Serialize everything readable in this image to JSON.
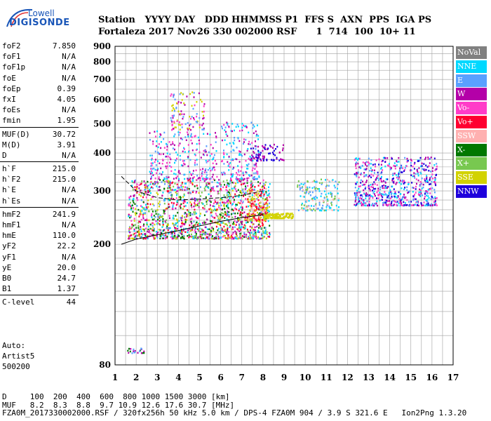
{
  "logo": {
    "line1": "Lowell",
    "line2": "DIGISONDE"
  },
  "header": {
    "line1": "Station   YYYY DAY   DDD HHMMSS P1  FFS S  AXN  PPS  IGA PS",
    "line2": "Fortaleza 2017 Nov26 330 002000 RSF      1  714  100  10+ 11"
  },
  "params": {
    "group1": [
      {
        "k": "foF2",
        "v": "7.850"
      },
      {
        "k": "foF1",
        "v": "N/A"
      },
      {
        "k": "foF1p",
        "v": "N/A"
      },
      {
        "k": "foE",
        "v": "N/A"
      },
      {
        "k": "foEp",
        "v": "0.39"
      },
      {
        "k": "fxI",
        "v": "4.05"
      },
      {
        "k": "foEs",
        "v": "N/A"
      },
      {
        "k": "fmin",
        "v": "1.95"
      }
    ],
    "group2": [
      {
        "k": "MUF(D)",
        "v": "30.72"
      },
      {
        "k": "M(D)",
        "v": "3.91"
      },
      {
        "k": "D",
        "v": "N/A"
      }
    ],
    "group3": [
      {
        "k": "h`F",
        "v": "215.0"
      },
      {
        "k": "h`F2",
        "v": "215.0"
      },
      {
        "k": "h`E",
        "v": "N/A"
      },
      {
        "k": "h`Es",
        "v": "N/A"
      }
    ],
    "group4": [
      {
        "k": "hmF2",
        "v": "241.9"
      },
      {
        "k": "hmF1",
        "v": "N/A"
      },
      {
        "k": "hmE",
        "v": "110.0"
      },
      {
        "k": "yF2",
        "v": "22.2"
      },
      {
        "k": "yF1",
        "v": "N/A"
      },
      {
        "k": "yE",
        "v": "20.0"
      },
      {
        "k": "B0",
        "v": "24.7"
      },
      {
        "k": "B1",
        "v": "1.37"
      }
    ],
    "group5": [
      {
        "k": "C-level",
        "v": "44"
      }
    ]
  },
  "auto": {
    "line1": "Auto:",
    "line2": "Artist5",
    "line3": "500200"
  },
  "footer": {
    "line1": "D     100  200  400  600  800 1000 1500 3000 [km]",
    "line2": "MUF   8.2  8.3  8.8  9.7 10.9 12.6 17.6 30.7 [MHz]",
    "line3": "FZA0M_2017330002000.RSF / 320fx256h 50 kHz 5.0 km / DPS-4 FZA0M 904 / 3.9 S 321.6 E   Ion2Png 1.3.20"
  },
  "legend": [
    {
      "label": "NoVal",
      "color": "#808080"
    },
    {
      "label": "NNE",
      "color": "#00d8ff"
    },
    {
      "label": "E",
      "color": "#5aa0ff"
    },
    {
      "label": "W",
      "color": "#b400a8"
    },
    {
      "label": "Vo-",
      "color": "#ff3cc8"
    },
    {
      "label": "Vo+",
      "color": "#ff0030"
    },
    {
      "label": "SSW",
      "color": "#ffb0b0"
    },
    {
      "label": "X-",
      "color": "#007800"
    },
    {
      "label": "X+",
      "color": "#78c850"
    },
    {
      "label": "SSE",
      "color": "#d2d200"
    },
    {
      "label": "NNW",
      "color": "#1e00dc"
    }
  ],
  "chart_data": {
    "type": "scatter",
    "title": "",
    "xlabel": "",
    "ylabel": "",
    "xlim": [
      1,
      17
    ],
    "ylim": [
      80,
      900
    ],
    "xticks": [
      "1",
      "2",
      "3",
      "4",
      "5",
      "6",
      "7",
      "8",
      "9",
      "10",
      "11",
      "12",
      "13",
      "14",
      "15",
      "16",
      "17"
    ],
    "yticks": [
      "80",
      "200",
      "300",
      "400",
      "500",
      "600",
      "700",
      "800",
      "900"
    ],
    "ytick_values": [
      80,
      200,
      300,
      400,
      500,
      600,
      700,
      800,
      900
    ],
    "grid": true,
    "y_scale": "log",
    "clusters": [
      {
        "x": [
          1.6,
          8.3
        ],
        "y": [
          210,
          330
        ],
        "colors": [
          "#ff0030",
          "#b400a8",
          "#ff3cc8",
          "#d2d200",
          "#78c850",
          "#5aa0ff",
          "#00d8ff",
          "#007800"
        ],
        "density": 1500
      },
      {
        "x": [
          2.6,
          5.8
        ],
        "y": [
          330,
          480
        ],
        "colors": [
          "#5aa0ff",
          "#00d8ff",
          "#b400a8",
          "#ff3cc8"
        ],
        "density": 260
      },
      {
        "x": [
          3.6,
          5.2
        ],
        "y": [
          480,
          640
        ],
        "colors": [
          "#d2d200",
          "#5aa0ff",
          "#ff3cc8",
          "#b400a8"
        ],
        "density": 110
      },
      {
        "x": [
          6.0,
          7.8
        ],
        "y": [
          330,
          510
        ],
        "colors": [
          "#5aa0ff",
          "#ff3cc8",
          "#b400a8",
          "#00d8ff"
        ],
        "density": 190
      },
      {
        "x": [
          7.2,
          8.2
        ],
        "y": [
          240,
          310
        ],
        "colors": [
          "#d2d200",
          "#ffb0b0",
          "#ff0030"
        ],
        "density": 140
      },
      {
        "x": [
          7.4,
          9.0
        ],
        "y": [
          380,
          430
        ],
        "colors": [
          "#1e00dc",
          "#b400a8"
        ],
        "density": 80
      },
      {
        "x": [
          8.0,
          9.4
        ],
        "y": [
          245,
          255
        ],
        "colors": [
          "#d2d200"
        ],
        "density": 120
      },
      {
        "x": [
          9.6,
          11.6
        ],
        "y": [
          260,
          330
        ],
        "colors": [
          "#ffb0b0",
          "#00d8ff",
          "#78c850",
          "#5aa0ff"
        ],
        "density": 160
      },
      {
        "x": [
          12.3,
          16.2
        ],
        "y": [
          270,
          390
        ],
        "colors": [
          "#5aa0ff",
          "#00d8ff",
          "#1e00dc",
          "#b400a8",
          "#ff3cc8"
        ],
        "density": 650
      },
      {
        "x": [
          1.5,
          2.4
        ],
        "y": [
          88,
          92
        ],
        "colors": [
          "#007800",
          "#5aa0ff",
          "#b400a8"
        ],
        "density": 22
      }
    ],
    "lines": [
      {
        "name": "",
        "x": [
          1.3,
          2.0,
          3.0,
          4.0,
          5.0,
          6.0,
          7.0,
          8.0
        ],
        "y": [
          200,
          208,
          215,
          222,
          230,
          238,
          245,
          250
        ]
      },
      {
        "name": "",
        "x": [
          1.3,
          2.0,
          3.0,
          4.0,
          5.0,
          6.0,
          7.0,
          8.0
        ],
        "y": [
          335,
          300,
          285,
          280,
          282,
          285,
          290,
          300
        ]
      }
    ]
  }
}
